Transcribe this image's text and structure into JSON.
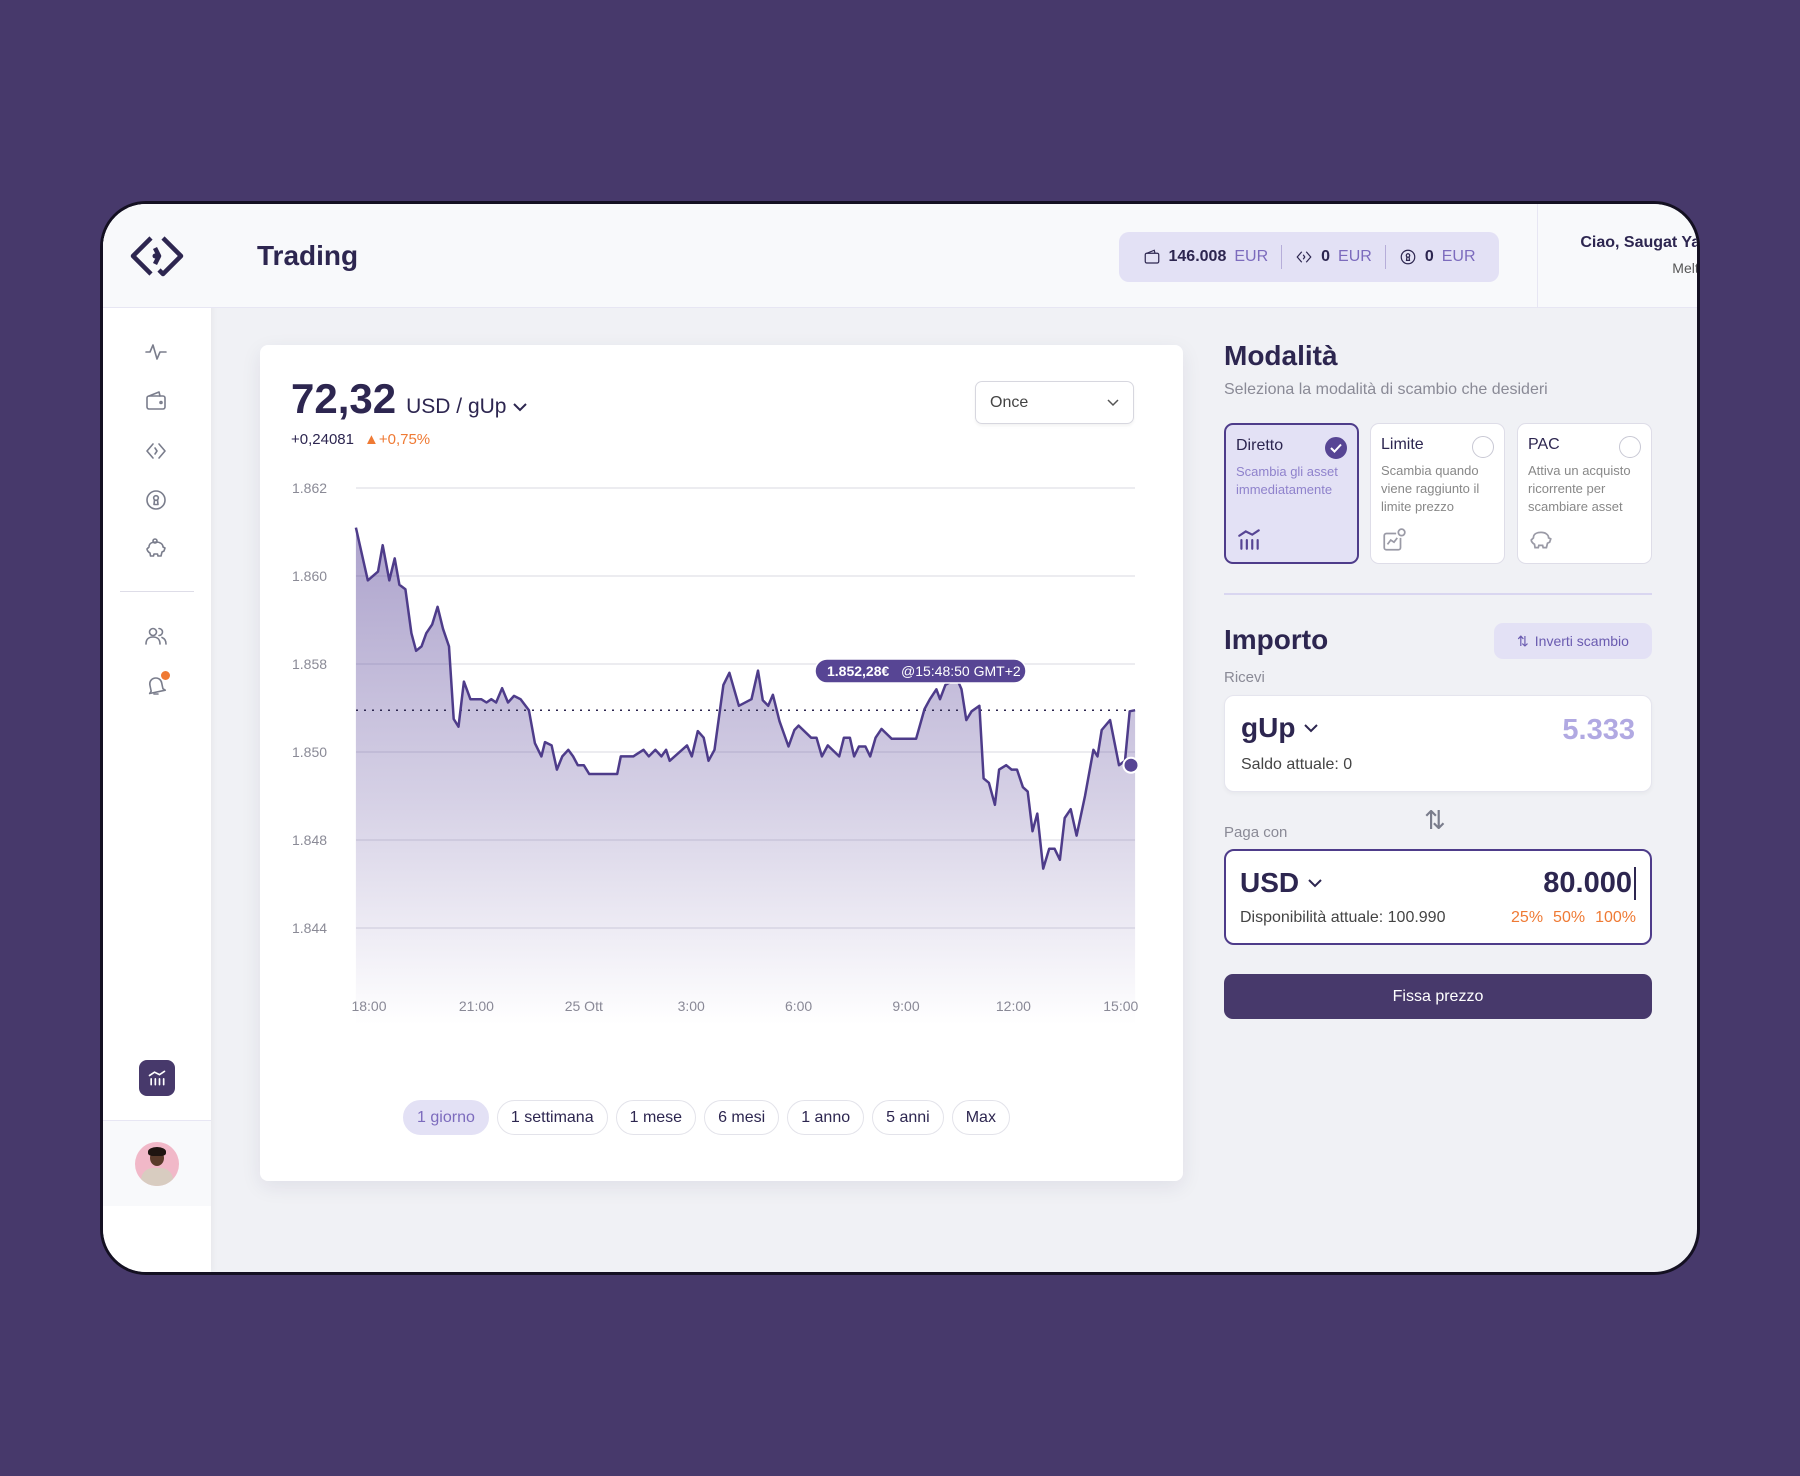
{
  "app": {
    "page_title": "Trading"
  },
  "header": {
    "balances": [
      {
        "icon": "wallet-icon",
        "amount": "146.008",
        "currency": "EUR"
      },
      {
        "icon": "brand-token-icon",
        "amount": "0",
        "currency": "EUR"
      },
      {
        "icon": "coin-lock-icon",
        "amount": "0",
        "currency": "EUR"
      }
    ],
    "user": {
      "greeting": "Ciao, Saugat Yadav!",
      "company": "Meltatech"
    }
  },
  "sidebar": {
    "items": [
      {
        "icon": "activity-icon",
        "label": "activity"
      },
      {
        "icon": "wallet-icon",
        "label": "wallet"
      },
      {
        "icon": "brand-token-icon",
        "label": "token"
      },
      {
        "icon": "coin-lock-icon",
        "label": "vault"
      },
      {
        "icon": "piggy-bank-icon",
        "label": "savings"
      },
      {
        "icon": "users-icon",
        "label": "users"
      },
      {
        "icon": "bell-icon",
        "label": "notifications",
        "badge": true
      }
    ],
    "active_icon": "trading-chart-icon",
    "notification_color": "#ef7a34"
  },
  "chart_panel": {
    "price": "72,32",
    "pair": "USD / gUp",
    "change_abs": "+0,24081",
    "change_pct": "+0,75%",
    "frequency_select": "Once",
    "ranges": [
      "1 giorno",
      "1 settimana",
      "1 mese",
      "6 mesi",
      "1 anno",
      "5 anni",
      "Max"
    ],
    "active_range": "1 giorno"
  },
  "chart_data": {
    "type": "area",
    "title": "",
    "xlabel": "",
    "ylabel": "",
    "y_ticks": [
      "1.844",
      "1.848",
      "1.850",
      "1.858",
      "1.860",
      "1.862"
    ],
    "x_ticks": [
      "18:00",
      "21:00",
      "25 Ott",
      "3:00",
      "6:00",
      "9:00",
      "12:00",
      "15:00"
    ],
    "grid": true,
    "line_color": "#4e3c8a",
    "reference_value": 1.8538,
    "tooltip": {
      "value": "1.852,28€",
      "time": "@15:48:50 GMT+2",
      "point": {
        "x": "14:57",
        "y": 1.8497
      }
    },
    "points": [
      [
        "17:38",
        1.8611
      ],
      [
        "17:58",
        1.8599
      ],
      [
        "18:15",
        1.8601
      ],
      [
        "18:23",
        1.8607
      ],
      [
        "18:34",
        1.8599
      ],
      [
        "18:43",
        1.8604
      ],
      [
        "18:51",
        1.8598
      ],
      [
        "19:01",
        1.8597
      ],
      [
        "19:11",
        1.8587
      ],
      [
        "19:19",
        1.8583
      ],
      [
        "19:28",
        1.8584
      ],
      [
        "19:36",
        1.8587
      ],
      [
        "19:46",
        1.8589
      ],
      [
        "19:55",
        1.8593
      ],
      [
        "20:04",
        1.8588
      ],
      [
        "20:14",
        1.8584
      ],
      [
        "20:22",
        1.853
      ],
      [
        "20:30",
        1.8523
      ],
      [
        "20:39",
        1.8564
      ],
      [
        "20:50",
        1.8548
      ],
      [
        "21:08",
        1.8548
      ],
      [
        "21:17",
        1.8545
      ],
      [
        "21:25",
        1.8548
      ],
      [
        "21:33",
        1.8545
      ],
      [
        "21:43",
        1.8558
      ],
      [
        "21:53",
        1.8545
      ],
      [
        "22:03",
        1.8551
      ],
      [
        "22:14",
        1.8548
      ],
      [
        "22:28",
        1.8538
      ],
      [
        "22:38",
        1.8508
      ],
      [
        "22:49",
        1.8499
      ],
      [
        "22:55",
        1.8509
      ],
      [
        "23:06",
        1.8506
      ],
      [
        "23:15",
        1.8496
      ],
      [
        "23:24",
        1.8499
      ],
      [
        "23:34",
        1.8502
      ],
      [
        "23:42",
        1.8499
      ],
      [
        "23:50",
        1.8497
      ],
      [
        "00:00",
        1.8497
      ],
      [
        "00:09",
        1.8495
      ],
      [
        "00:56",
        1.8495
      ],
      [
        "01:02",
        1.8499
      ],
      [
        "01:23",
        1.8499
      ],
      [
        "01:40",
        1.8502
      ],
      [
        "01:49",
        1.8499
      ],
      [
        "02:00",
        1.8502
      ],
      [
        "02:10",
        1.8499
      ],
      [
        "02:18",
        1.8502
      ],
      [
        "02:24",
        1.8498
      ],
      [
        "02:53",
        1.8506
      ],
      [
        "03:01",
        1.8499
      ],
      [
        "03:11",
        1.8519
      ],
      [
        "03:21",
        1.8513
      ],
      [
        "03:29",
        1.8498
      ],
      [
        "03:39",
        1.8502
      ],
      [
        "03:54",
        1.8561
      ],
      [
        "04:04",
        1.8572
      ],
      [
        "04:20",
        1.8542
      ],
      [
        "04:41",
        1.8548
      ],
      [
        "04:52",
        1.8574
      ],
      [
        "05:00",
        1.8547
      ],
      [
        "05:09",
        1.8542
      ],
      [
        "05:17",
        1.8552
      ],
      [
        "05:28",
        1.8528
      ],
      [
        "05:43",
        1.8505
      ],
      [
        "05:53",
        1.852
      ],
      [
        "06:00",
        1.8524
      ],
      [
        "06:21",
        1.8513
      ],
      [
        "06:30",
        1.8513
      ],
      [
        "06:39",
        1.8499
      ],
      [
        "06:49",
        1.8506
      ],
      [
        "07:08",
        1.8499
      ],
      [
        "07:16",
        1.8513
      ],
      [
        "07:26",
        1.8513
      ],
      [
        "07:33",
        1.8499
      ],
      [
        "07:41",
        1.8505
      ],
      [
        "07:52",
        1.8505
      ],
      [
        "08:00",
        1.8499
      ],
      [
        "08:09",
        1.8513
      ],
      [
        "08:19",
        1.8521
      ],
      [
        "08:36",
        1.8512
      ],
      [
        "09:17",
        1.8512
      ],
      [
        "09:31",
        1.8539
      ],
      [
        "09:40",
        1.8548
      ],
      [
        "09:51",
        1.8557
      ],
      [
        "09:57",
        1.8548
      ],
      [
        "10:06",
        1.8561
      ],
      [
        "10:25",
        1.8567
      ],
      [
        "10:33",
        1.8557
      ],
      [
        "10:41",
        1.8529
      ],
      [
        "10:50",
        1.8537
      ],
      [
        "11:03",
        1.8542
      ],
      [
        "11:10",
        1.8494
      ],
      [
        "11:19",
        1.8493
      ],
      [
        "11:29",
        1.8488
      ],
      [
        "11:36",
        1.8496
      ],
      [
        "11:48",
        1.8497
      ],
      [
        "11:57",
        1.8496
      ],
      [
        "12:06",
        1.8496
      ],
      [
        "12:16",
        1.8492
      ],
      [
        "12:24",
        1.8491
      ],
      [
        "12:32",
        1.8482
      ],
      [
        "12:40",
        1.8486
      ],
      [
        "12:50",
        1.8467
      ],
      [
        "13:00",
        1.8476
      ],
      [
        "13:09",
        1.8476
      ],
      [
        "13:18",
        1.8471
      ],
      [
        "13:26",
        1.8485
      ],
      [
        "13:36",
        1.8487
      ],
      [
        "13:46",
        1.8481
      ],
      [
        "14:00",
        1.849
      ],
      [
        "14:14",
        1.8502
      ],
      [
        "14:21",
        1.8499
      ],
      [
        "14:28",
        1.852
      ],
      [
        "14:42",
        1.8529
      ],
      [
        "14:57",
        1.8497
      ],
      [
        "15:07",
        1.8498
      ],
      [
        "15:15",
        1.8537
      ],
      [
        "15:24",
        1.8538
      ]
    ]
  },
  "modes": {
    "title": "Modalità",
    "subtitle": "Seleziona la modalità di scambio che desideri",
    "options": [
      {
        "title": "Diretto",
        "desc": "Scambia gli asset immediatamente",
        "icon": "trading-chart-icon",
        "selected": true
      },
      {
        "title": "Limite",
        "desc": "Scambia quando viene raggiunto il limite prezzo",
        "icon": "limit-chart-icon",
        "selected": false
      },
      {
        "title": "PAC",
        "desc": "Attiva un acquisto ricorrente per scambiare asset",
        "icon": "piggy-bank-icon",
        "selected": false
      }
    ]
  },
  "amount": {
    "title": "Importo",
    "invert_label": "Inverti scambio",
    "receive": {
      "label": "Ricevi",
      "currency": "gUp",
      "value": "5.333",
      "balance": "Saldo attuale: 0"
    },
    "pay": {
      "label": "Paga con",
      "currency": "USD",
      "value": "80.000",
      "balance": "Disponibilità attuale: 100.990",
      "quick": [
        "25%",
        "50%",
        "100%"
      ]
    },
    "submit_label": "Fissa prezzo"
  },
  "colors": {
    "primary": "#47396b",
    "accent": "#574594",
    "light_accent": "#e3e1f5",
    "orange": "#ef7a34"
  }
}
